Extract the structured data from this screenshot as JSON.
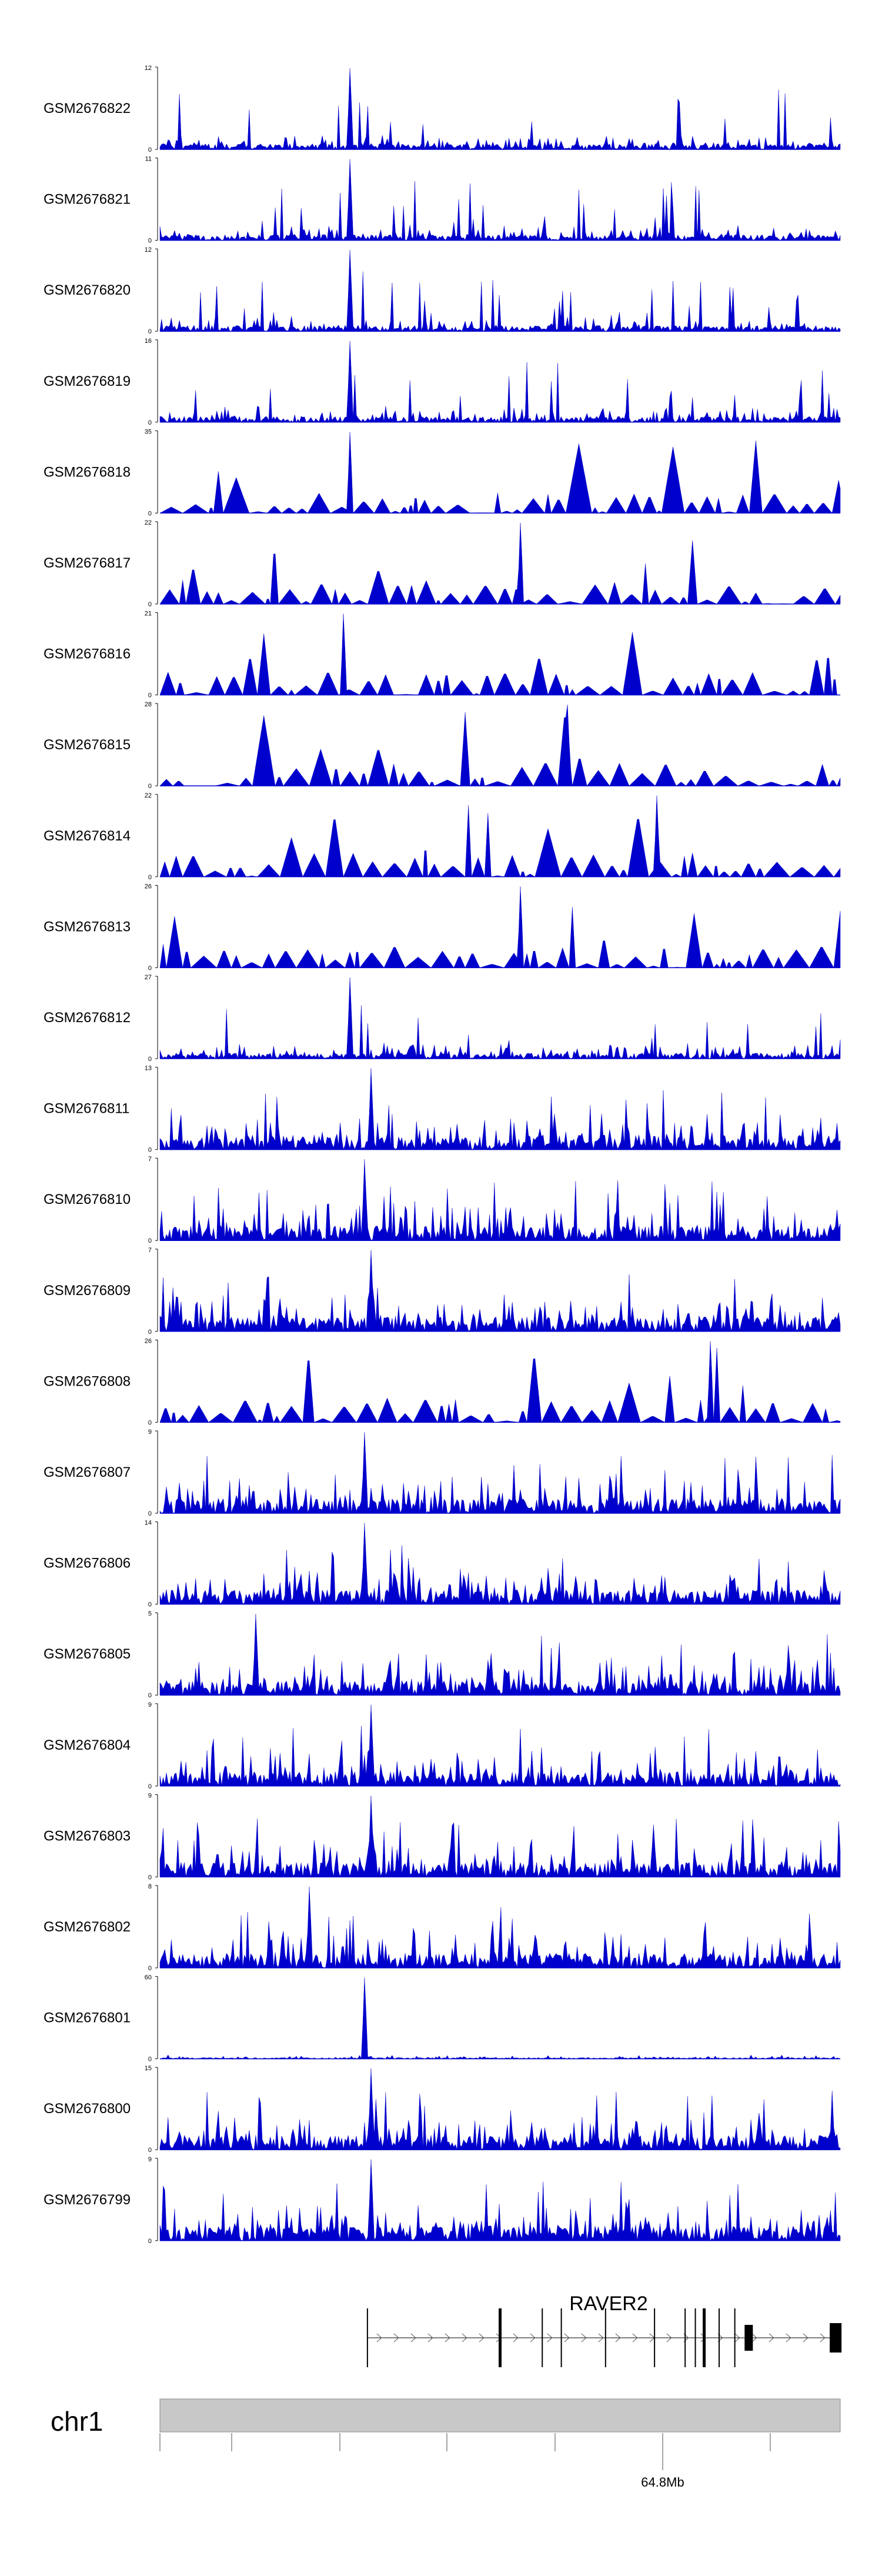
{
  "colors": {
    "signal": "#0000cc",
    "axis": "#000000",
    "chrom_bar": "#c8c8c8",
    "gene": "#000000"
  },
  "chart_data": {
    "type": "area",
    "tracks": [
      {
        "label": "GSM2676822",
        "ymin": 0,
        "ymax": 12,
        "seed": 22,
        "profile": "sparse",
        "peak": 0.28
      },
      {
        "label": "GSM2676821",
        "ymin": 0,
        "ymax": 11,
        "seed": 21,
        "profile": "sparse",
        "peak": 0.28
      },
      {
        "label": "GSM2676820",
        "ymin": 0,
        "ymax": 12,
        "seed": 20,
        "profile": "sparse",
        "peak": 0.28
      },
      {
        "label": "GSM2676819",
        "ymin": 0,
        "ymax": 16,
        "seed": 19,
        "profile": "sparse",
        "peak": 0.28
      },
      {
        "label": "GSM2676818",
        "ymin": 0,
        "ymax": 35,
        "seed": 18,
        "profile": "triangles",
        "peak": 0.28
      },
      {
        "label": "GSM2676817",
        "ymin": 0,
        "ymax": 22,
        "seed": 17,
        "profile": "triangles",
        "peak": 0.53
      },
      {
        "label": "GSM2676816",
        "ymin": 0,
        "ymax": 21,
        "seed": 16,
        "profile": "triangles",
        "peak": 0.27
      },
      {
        "label": "GSM2676815",
        "ymin": 0,
        "ymax": 28,
        "seed": 15,
        "profile": "triangles",
        "peak": 0.6
      },
      {
        "label": "GSM2676814",
        "ymin": 0,
        "ymax": 22,
        "seed": 14,
        "profile": "triangles",
        "peak": 0.73
      },
      {
        "label": "GSM2676813",
        "ymin": 0,
        "ymax": 26,
        "seed": 13,
        "profile": "triangles",
        "peak": 0.53
      },
      {
        "label": "GSM2676812",
        "ymin": 0,
        "ymax": 27,
        "seed": 12,
        "profile": "sparse",
        "peak": 0.28
      },
      {
        "label": "GSM2676811",
        "ymin": 0,
        "ymax": 13,
        "seed": 11,
        "profile": "dense",
        "peak": 0.31
      },
      {
        "label": "GSM2676810",
        "ymin": 0,
        "ymax": 7,
        "seed": 10,
        "profile": "dense",
        "peak": 0.3
      },
      {
        "label": "GSM2676809",
        "ymin": 0,
        "ymax": 7,
        "seed": 9,
        "profile": "dense",
        "peak": 0.31
      },
      {
        "label": "GSM2676808",
        "ymin": 0,
        "ymax": 26,
        "seed": 8,
        "profile": "triangles",
        "peak": 0.81
      },
      {
        "label": "GSM2676807",
        "ymin": 0,
        "ymax": 9,
        "seed": 7,
        "profile": "dense",
        "peak": 0.3
      },
      {
        "label": "GSM2676806",
        "ymin": 0,
        "ymax": 14,
        "seed": 6,
        "profile": "dense",
        "peak": 0.3
      },
      {
        "label": "GSM2676805",
        "ymin": 0,
        "ymax": 5,
        "seed": 5,
        "profile": "dense",
        "peak": 0.14
      },
      {
        "label": "GSM2676804",
        "ymin": 0,
        "ymax": 9,
        "seed": 4,
        "profile": "dense",
        "peak": 0.31
      },
      {
        "label": "GSM2676803",
        "ymin": 0,
        "ymax": 9,
        "seed": 3,
        "profile": "dense",
        "peak": 0.31
      },
      {
        "label": "GSM2676802",
        "ymin": 0,
        "ymax": 8,
        "seed": 2,
        "profile": "dense",
        "peak": 0.22
      },
      {
        "label": "GSM2676801",
        "ymin": 0,
        "ymax": 60,
        "seed": 1,
        "profile": "flat",
        "peak": 0.3
      },
      {
        "label": "GSM2676800",
        "ymin": 0,
        "ymax": 15,
        "seed": 40,
        "profile": "dense",
        "peak": 0.31
      },
      {
        "label": "GSM2676799",
        "ymin": 0,
        "ymax": 9,
        "seed": 41,
        "profile": "dense",
        "peak": 0.31
      }
    ],
    "gene": {
      "name": "RAVER2",
      "start_frac": 0.305,
      "end_frac": 1.0,
      "exons": [
        0.305,
        0.5,
        0.562,
        0.59,
        0.655,
        0.727,
        0.772,
        0.787,
        0.8,
        0.822,
        0.845,
        0.862,
        0.988
      ]
    },
    "chromosome": {
      "name": "chr1",
      "tick_label": "64.8Mb"
    }
  }
}
